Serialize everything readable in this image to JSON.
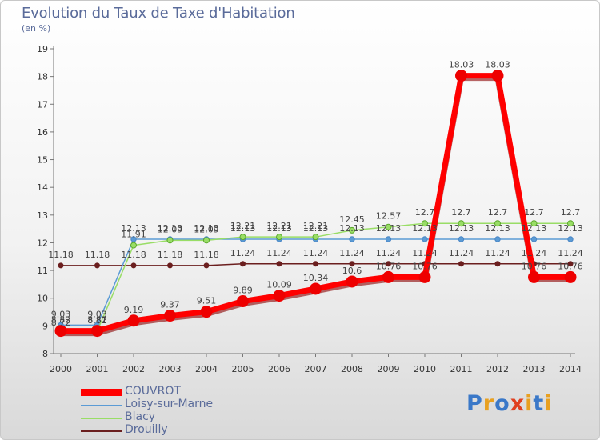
{
  "title": "Evolution du Taux de Taxe d'Habitation",
  "unit_label": "(en %)",
  "logo": {
    "text": "Proxiti",
    "colors": [
      "#3a78c8",
      "#e8a020",
      "#3a78c8",
      "#e04020",
      "#e8a020",
      "#3a78c8",
      "#e8a020"
    ]
  },
  "chart_data": {
    "type": "line",
    "title": "Evolution du Taux de Taxe d'Habitation",
    "ylabel": "(en %)",
    "xlabel": "",
    "ylim": [
      8,
      19
    ],
    "yticks": [
      "8",
      "9",
      "10",
      "11",
      "12",
      "13",
      "14",
      "15",
      "16",
      "17",
      "18",
      "19"
    ],
    "categories": [
      "2000",
      "2001",
      "2002",
      "2003",
      "2004",
      "2005",
      "2006",
      "2007",
      "2008",
      "2009",
      "2010",
      "2011",
      "2012",
      "2013",
      "2014"
    ],
    "grid": false,
    "legend_position": "bottom-left",
    "series": [
      {
        "name": "Drouilly",
        "color": "#6b1f1f",
        "values": [
          11.18,
          11.18,
          11.18,
          11.18,
          11.18,
          11.24,
          11.24,
          11.24,
          11.24,
          11.24,
          11.24,
          11.24,
          11.24,
          11.24,
          11.24
        ],
        "labels": [
          "11.18",
          "11.18",
          "11.18",
          "11.18",
          "11.18",
          "11.24",
          "11.24",
          "11.24",
          "11.24",
          "11.24",
          "11.24",
          "11.24",
          "11.24",
          "11.24",
          "11.24"
        ]
      },
      {
        "name": "Loisy-sur-Marne",
        "color": "#5b9bd5",
        "values": [
          9.03,
          9.03,
          12.13,
          12.13,
          12.13,
          12.13,
          12.13,
          12.13,
          12.13,
          12.13,
          12.13,
          12.13,
          12.13,
          12.13,
          12.13
        ],
        "labels": [
          "9.03",
          "9.03",
          "12.13",
          "12.13",
          "12.13",
          "12.13",
          "12.13",
          "12.13",
          "12.13",
          "12.13",
          "12.13",
          "12.13",
          "12.13",
          "12.13",
          "12.13"
        ]
      },
      {
        "name": "Blacy",
        "color": "#99dd66",
        "values": [
          8.72,
          8.81,
          11.91,
          12.09,
          12.09,
          12.21,
          12.21,
          12.21,
          12.45,
          12.57,
          12.7,
          12.7,
          12.7,
          12.7,
          12.7
        ],
        "labels": [
          "8.72",
          "8.81",
          "11.91",
          "12.09",
          "12.09",
          "12.21",
          "12.21",
          "12.21",
          "12.45",
          "12.57",
          "12.7",
          "12.7",
          "12.7",
          "12.7",
          "12.7"
        ]
      },
      {
        "name": "COUVROT",
        "color": "#ff0000",
        "values": [
          8.82,
          8.82,
          9.19,
          9.37,
          9.51,
          9.89,
          10.09,
          10.34,
          10.6,
          10.76,
          10.76,
          18.03,
          18.03,
          10.76,
          10.76
        ],
        "labels": [
          "8.82",
          "8.82",
          "9.19",
          "9.37",
          "9.51",
          "9.89",
          "10.09",
          "10.34",
          "10.6",
          "10.76",
          "10.76",
          "18.03",
          "18.03",
          "10.76",
          "10.76"
        ]
      }
    ]
  }
}
